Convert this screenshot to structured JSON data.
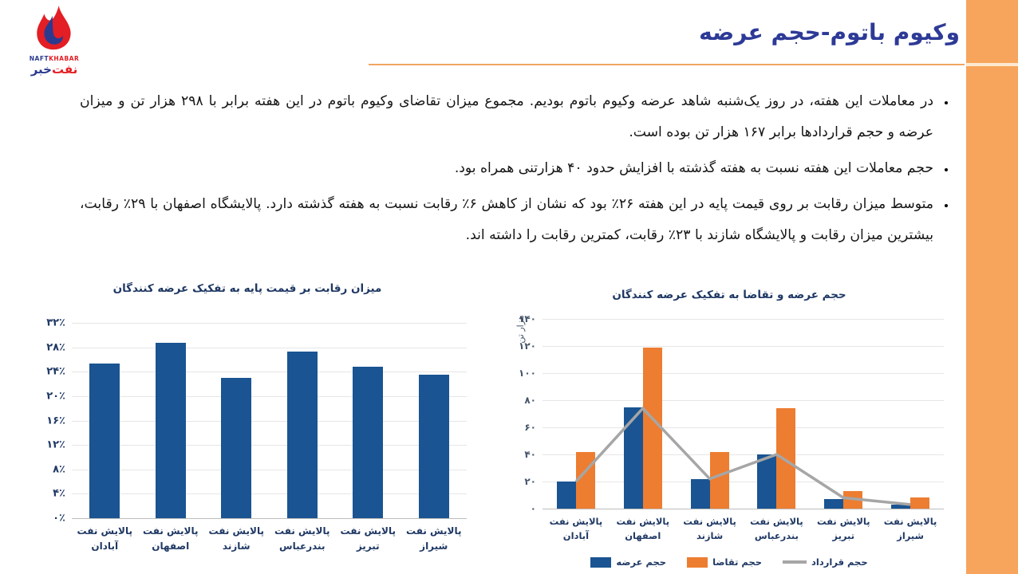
{
  "header": {
    "title": "وکیوم باتوم-حجم عرضه",
    "logo": {
      "en_blue": "NAFT",
      "en_red": "KHABAR",
      "fa_red": "نفت",
      "fa_blue": "خبر"
    }
  },
  "bullets": [
    "در معاملات این هفته، در روز یک‌شنبه شاهد عرضه وکیوم باتوم بودیم. مجموع میزان تقاضای وکیوم باتوم در این هفته برابر با ۲۹۸ هزار تن و میزان عرضه و حجم قراردادها برابر ۱۶۷ هزار تن بوده است.",
    "حجم معاملات این هفته نسبت به هفته گذشته با افزایش حدود ۴۰ هزارتنی همراه بود.",
    "متوسط میزان رقابت بر روی قیمت پایه در این هفته ۲۶٪ بود که نشان از کاهش ۶٪ رقابت نسبت به هفته گذشته دارد. پالایشگاه اصفهان با ۲۹٪ رقابت، بیشترین میزان رقابت و پالایشگاه شازند با ۲۳٪ رقابت، کمترین رقابت را داشته اند."
  ],
  "colors": {
    "accent_orange": "#F7A55C",
    "title_blue": "#2D3A96",
    "navy_text": "#1F3864",
    "bar_blue": "#1A5492",
    "bar_orange": "#ED7D31",
    "line_gray": "#A6A6A6",
    "logo_red": "#E31E24",
    "logo_blue": "#2B3A8F"
  },
  "chart_data": [
    {
      "type": "bar",
      "title": "میزان رقابت بر قیمت پایه به تفکیک عرضه کنندگان",
      "categories": [
        "پالایش نفت آبادان",
        "پالایش نفت اصفهان",
        "پالایش نفت شازند",
        "پالایش نفت بندرعباس",
        "پالایش نفت تبریز",
        "پالایش نفت شیراز"
      ],
      "categories_lines": [
        [
          "پالایش نفت",
          "آبادان"
        ],
        [
          "پالایش نفت",
          "اصفهان"
        ],
        [
          "پالایش نفت",
          "شازند"
        ],
        [
          "پالایش نفت",
          "بندرعباس"
        ],
        [
          "پالایش نفت",
          "تبریز"
        ],
        [
          "پالایش نفت",
          "شیراز"
        ]
      ],
      "values": [
        25.3,
        28.7,
        23.0,
        27.3,
        24.8,
        23.5
      ],
      "unit": "%",
      "xlabel": "",
      "ylabel": "",
      "ylim": [
        0,
        32
      ],
      "ytick_step": 4,
      "ytick_labels": [
        "۰٪",
        "۴٪",
        "۸٪",
        "۱۲٪",
        "۱۶٪",
        "۲۰٪",
        "۲۴٪",
        "۲۸٪",
        "۳۲٪"
      ],
      "bar_color": "#1A5492",
      "grid": true
    },
    {
      "type": "bar+line",
      "title": "حجم عرضه و تقاضا به تفکیک عرضه کنندگان",
      "xlabel": "",
      "ylabel": "هزار تن",
      "categories": [
        "پالایش نفت آبادان",
        "پالایش نفت اصفهان",
        "پالایش نفت شازند",
        "پالایش نفت بندرعباس",
        "پالایش نفت تبریز",
        "پالایش نفت شیراز"
      ],
      "categories_lines": [
        [
          "پالایش نفت",
          "آبادان"
        ],
        [
          "پالایش نفت",
          "اصفهان"
        ],
        [
          "پالایش نفت",
          "شازند"
        ],
        [
          "پالایش نفت",
          "بندرعباس"
        ],
        [
          "پالایش نفت تبریز"
        ],
        [
          "پالایش نفت",
          "شیراز"
        ]
      ],
      "series": [
        {
          "name": "حجم عرضه",
          "type": "bar",
          "color": "#1A5492",
          "values": [
            20,
            75,
            22,
            40,
            7,
            3
          ]
        },
        {
          "name": "حجم تقاضا",
          "type": "bar",
          "color": "#ED7D31",
          "values": [
            42,
            119,
            42,
            74,
            13,
            8
          ]
        },
        {
          "name": "حجم قرارداد",
          "type": "line",
          "color": "#A6A6A6",
          "values": [
            20,
            74,
            22,
            40,
            8,
            3
          ]
        }
      ],
      "ylim": [
        0,
        140
      ],
      "ytick_step": 20,
      "ytick_labels": [
        "۰",
        "۲۰",
        "۴۰",
        "۶۰",
        "۸۰",
        "۱۰۰",
        "۱۲۰",
        "۱۴۰"
      ],
      "grid": true,
      "legend_position": "bottom"
    }
  ]
}
